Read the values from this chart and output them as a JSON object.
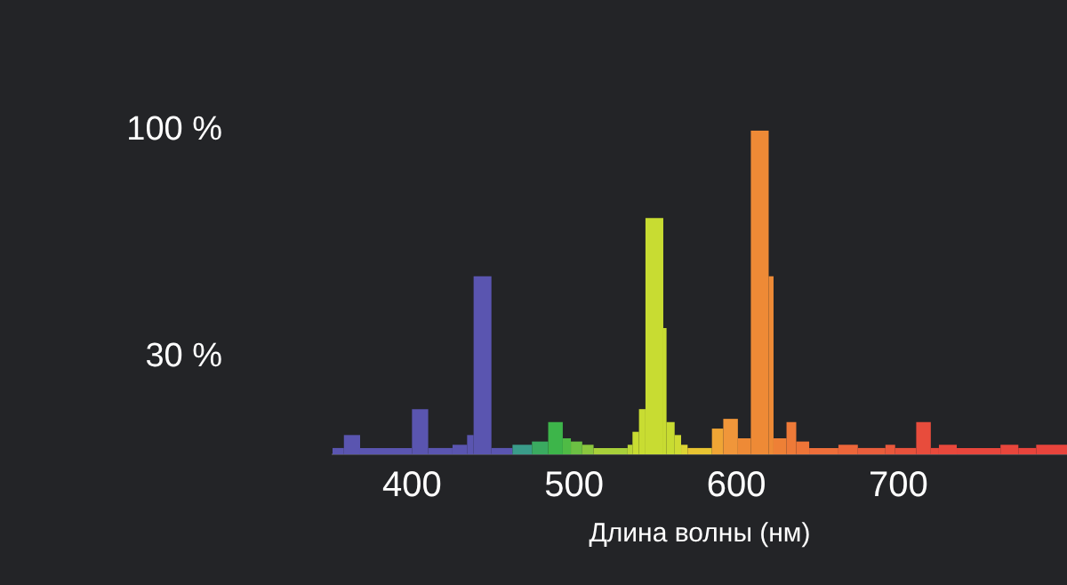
{
  "chart_data": {
    "type": "histogram",
    "xlabel": "Длина волны (нм)",
    "bins": [
      351,
      358,
      368,
      400,
      410,
      425,
      434,
      438,
      449,
      462,
      474,
      484,
      493,
      498,
      505,
      512,
      533,
      536,
      540,
      544,
      555,
      557,
      562,
      566,
      570,
      585,
      592,
      601,
      609,
      620,
      623,
      631,
      637,
      645,
      663,
      675,
      692,
      698,
      711,
      720,
      725,
      736,
      763,
      774,
      785,
      804
    ],
    "values": [
      2,
      6,
      2,
      14,
      2,
      3,
      6,
      55,
      2,
      3,
      4,
      10,
      5,
      4,
      3,
      2,
      3,
      7,
      14,
      73,
      39,
      10,
      6,
      3,
      2,
      8,
      11,
      5,
      100,
      55,
      5,
      10,
      4,
      2,
      3,
      2,
      3,
      2,
      10,
      2,
      3,
      2,
      3,
      2,
      3
    ],
    "colors": [
      "#5a55b0",
      "#5a55b0",
      "#5a55b0",
      "#5a55b0",
      "#5a55b0",
      "#5a55b0",
      "#5a55b0",
      "#5a55b0",
      "#5a55b0",
      "#3a9c8a",
      "#3aaa60",
      "#3db54a",
      "#4fbb45",
      "#6cc043",
      "#8ac63e",
      "#a8d03a",
      "#bcd636",
      "#c8dc32",
      "#c8dc32",
      "#c8dc32",
      "#c8dc32",
      "#c8dc32",
      "#cfdb33",
      "#dcd434",
      "#e8c432",
      "#efa535",
      "#f0963a",
      "#ee8a36",
      "#ee8a36",
      "#ee8a36",
      "#ee8036",
      "#ee7a38",
      "#ee7538",
      "#ee6e3a",
      "#ec663a",
      "#ea5e3c",
      "#ea583c",
      "#e8523c",
      "#e84c3c",
      "#e84a3c",
      "#e8483c",
      "#e8463c",
      "#e8463c",
      "#e8443c",
      "#e8443c"
    ],
    "xlim": [
      351,
      804
    ],
    "xticks": [
      400,
      500,
      600,
      700
    ],
    "ylim": [
      0,
      100
    ],
    "yticks": [
      {
        "value": 30,
        "label": "30 %"
      },
      {
        "value": 100,
        "label": "100 %"
      }
    ],
    "grid": false,
    "legend": false
  }
}
